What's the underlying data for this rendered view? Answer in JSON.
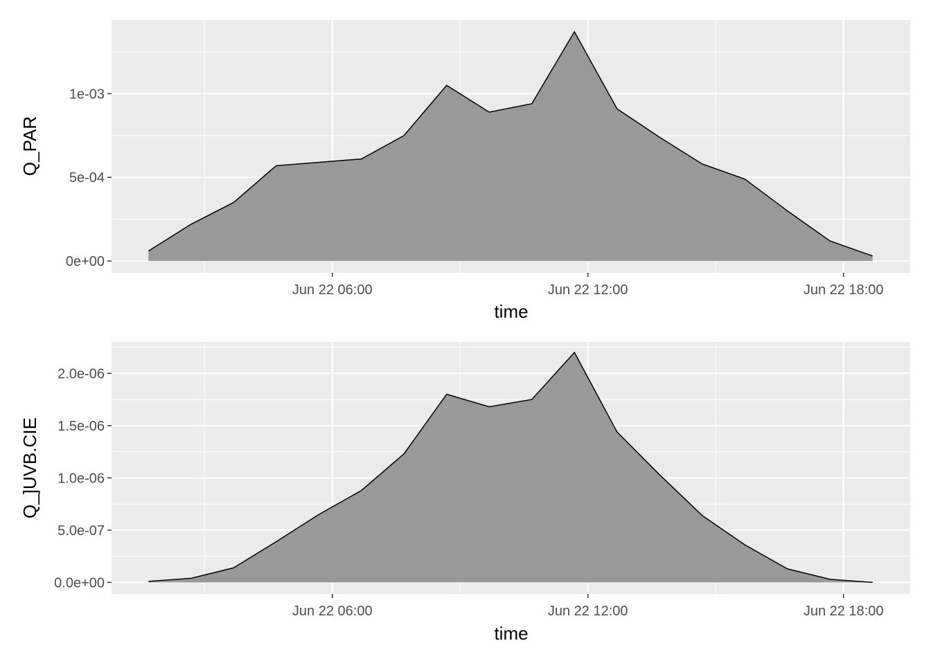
{
  "chart_data": [
    {
      "type": "area",
      "xlabel": "time",
      "ylabel": "Q_PAR",
      "x": [
        "2021-06-22T01:41",
        "2021-06-22T02:41",
        "2021-06-22T03:41",
        "2021-06-22T04:41",
        "2021-06-22T05:41",
        "2021-06-22T06:41",
        "2021-06-22T07:41",
        "2021-06-22T08:41",
        "2021-06-22T09:41",
        "2021-06-22T10:41",
        "2021-06-22T11:41",
        "2021-06-22T12:41",
        "2021-06-22T13:41",
        "2021-06-22T14:41",
        "2021-06-22T15:41",
        "2021-06-22T16:41",
        "2021-06-22T17:41",
        "2021-06-22T18:41"
      ],
      "values": [
        6e-05,
        0.00022,
        0.00035,
        0.00057,
        0.00059,
        0.00061,
        0.00075,
        0.00105,
        0.00089,
        0.00094,
        0.00137,
        0.00091,
        0.00074,
        0.00058,
        0.00049,
        0.0003,
        0.00012,
        3e-05
      ],
      "xlim": [
        "2021-06-22T00:49",
        "2021-06-22T19:34"
      ],
      "ylim": [
        -7e-05,
        0.00144
      ],
      "xticks": [
        "2021-06-22T06:00",
        "2021-06-22T12:00",
        "2021-06-22T18:00"
      ],
      "xtick_labels": [
        "Jun 22 06:00",
        "Jun 22 12:00",
        "Jun 22 18:00"
      ],
      "yticks": [
        0,
        0.0005,
        0.001
      ],
      "ytick_labels": [
        "0e+00",
        "5e-04",
        "1e-03"
      ],
      "fill_color": "#999999",
      "line_color": "#000000",
      "panel_color": "#ebebeb",
      "grid": true
    },
    {
      "type": "area",
      "xlabel": "time",
      "ylabel": "Q_]UVB.CIE",
      "x": [
        "2021-06-22T01:41",
        "2021-06-22T02:41",
        "2021-06-22T03:41",
        "2021-06-22T04:41",
        "2021-06-22T05:41",
        "2021-06-22T06:41",
        "2021-06-22T07:41",
        "2021-06-22T08:41",
        "2021-06-22T09:41",
        "2021-06-22T10:41",
        "2021-06-22T11:41",
        "2021-06-22T12:41",
        "2021-06-22T13:41",
        "2021-06-22T14:41",
        "2021-06-22T15:41",
        "2021-06-22T16:41",
        "2021-06-22T17:41",
        "2021-06-22T18:41"
      ],
      "values": [
        1e-08,
        4e-08,
        1.4e-07,
        3.9e-07,
        6.5e-07,
        8.8e-07,
        1.23e-06,
        1.8e-06,
        1.68e-06,
        1.75e-06,
        2.2e-06,
        1.44e-06,
        1.03e-06,
        6.4e-07,
        3.6e-07,
        1.3e-07,
        3e-08,
        0
      ],
      "xlim": [
        "2021-06-22T00:49",
        "2021-06-22T19:34"
      ],
      "ylim": [
        -1.1e-07,
        2.3e-06
      ],
      "xticks": [
        "2021-06-22T06:00",
        "2021-06-22T12:00",
        "2021-06-22T18:00"
      ],
      "xtick_labels": [
        "Jun 22 06:00",
        "Jun 22 12:00",
        "Jun 22 18:00"
      ],
      "yticks": [
        0,
        5e-07,
        1e-06,
        1.5e-06,
        2e-06
      ],
      "ytick_labels": [
        "0.0e+00",
        "5.0e-07",
        "1.0e-06",
        "1.5e-06",
        "2.0e-06"
      ],
      "fill_color": "#999999",
      "line_color": "#000000",
      "panel_color": "#ebebeb",
      "grid": true
    }
  ]
}
